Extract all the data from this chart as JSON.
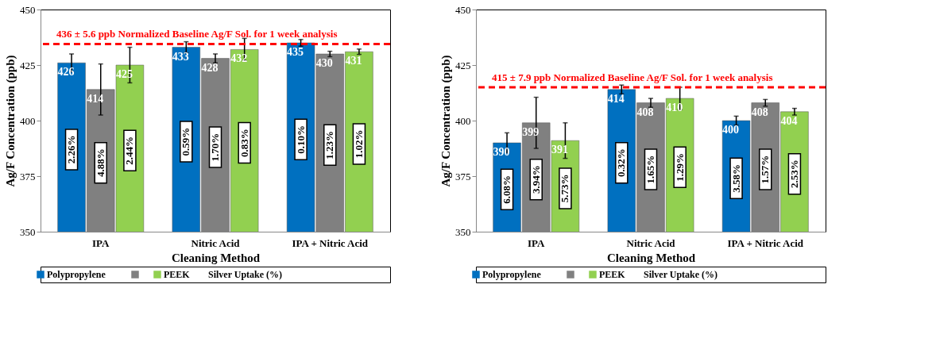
{
  "chart_data": [
    {
      "type": "bar",
      "xlabel": "Cleaning Method",
      "ylabel": "Ag/F Concentration (ppb)",
      "categories": [
        "IPA",
        "Nitric Acid",
        "IPA + Nitric Acid"
      ],
      "ylim": [
        350,
        450
      ],
      "yticks": [
        350,
        375,
        400,
        425,
        450
      ],
      "data_labels": true,
      "legend": "bottom",
      "series": [
        {
          "name": "Polypropylene",
          "color": "#0070c0",
          "values": [
            426,
            433,
            435
          ],
          "errors": [
            4,
            2.5,
            1.5
          ]
        },
        {
          "color": "#808080",
          "values": [
            414,
            428,
            430
          ],
          "errors": [
            11.5,
            2,
            1.2
          ]
        },
        {
          "name": "PEEK",
          "color": "#92d050",
          "values": [
            425,
            432,
            431
          ],
          "errors": [
            8,
            5,
            1.2
          ]
        }
      ],
      "ref_lines": [
        {
          "axis": "y",
          "value": 434.5,
          "label": "436 ±  5.6 ppb Normalized Baseline Ag/F Sol. for 1 week analysis",
          "color": "#ff0000",
          "line_style": "dashed"
        }
      ],
      "annotations": [
        "2.26%",
        "4.88%",
        "2.44%",
        "0.59%",
        "1.70%",
        "0.83%",
        "0.10%",
        "1.23%",
        "1.02%",
        "Silver Uptake (%)"
      ]
    },
    {
      "type": "bar",
      "xlabel": "Cleaning Method",
      "ylabel": "Ag/F Concentration (ppb)",
      "categories": [
        "IPA",
        "Nitric Acid",
        "IPA + Nitric Acid"
      ],
      "ylim": [
        350,
        450
      ],
      "yticks": [
        350,
        375,
        400,
        425,
        450
      ],
      "data_labels": true,
      "legend": "bottom",
      "series": [
        {
          "name": "Polypropylene",
          "color": "#0070c0",
          "values": [
            390,
            414,
            400
          ],
          "errors": [
            4.5,
            2,
            2
          ]
        },
        {
          "color": "#808080",
          "values": [
            399,
            408,
            408
          ],
          "errors": [
            11.5,
            2,
            1.5
          ]
        },
        {
          "name": "PEEK",
          "color": "#92d050",
          "values": [
            391,
            410,
            404
          ],
          "errors": [
            8,
            5,
            1.5
          ]
        }
      ],
      "ref_lines": [
        {
          "axis": "y",
          "value": 415,
          "label": "415 ± 7.9 ppb Normalized Baseline Ag/F Sol. for 1 week analysis",
          "color": "#ff0000",
          "line_style": "dashed"
        }
      ],
      "annotations": [
        "6.08%",
        "3.94%",
        "5.73%",
        "0.32%",
        "1.65%",
        "1.29%",
        "3.58%",
        "1.57%",
        "2.53%",
        "Silver Uptake (%)"
      ]
    }
  ]
}
